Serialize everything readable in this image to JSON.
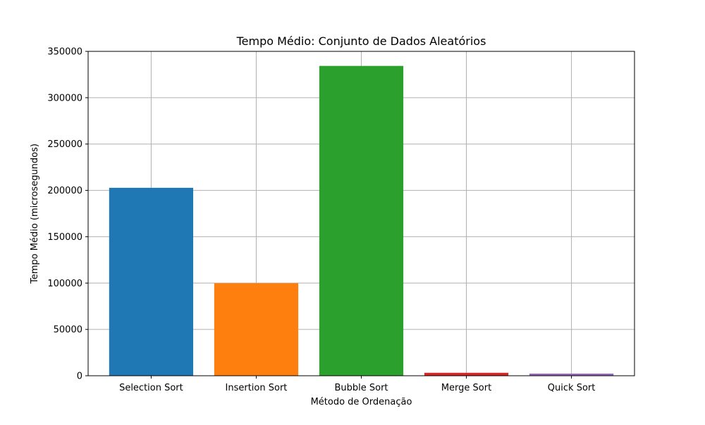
{
  "chart_data": {
    "type": "bar",
    "title": "Tempo Médio: Conjunto de Dados Aleatórios",
    "xlabel": "Método de Ordenação",
    "ylabel": "Tempo Médio (microsegundos)",
    "categories": [
      "Selection Sort",
      "Insertion Sort",
      "Bubble Sort",
      "Merge Sort",
      "Quick Sort"
    ],
    "values": [
      202800,
      99800,
      334300,
      3200,
      2300
    ],
    "colors": [
      "#1f77b4",
      "#ff7f0e",
      "#2ca02c",
      "#d62728",
      "#9467bd"
    ],
    "ylim": [
      0,
      350000
    ],
    "yticks": [
      0,
      50000,
      100000,
      150000,
      200000,
      250000,
      300000,
      350000
    ],
    "grid": true,
    "legend": "none"
  }
}
